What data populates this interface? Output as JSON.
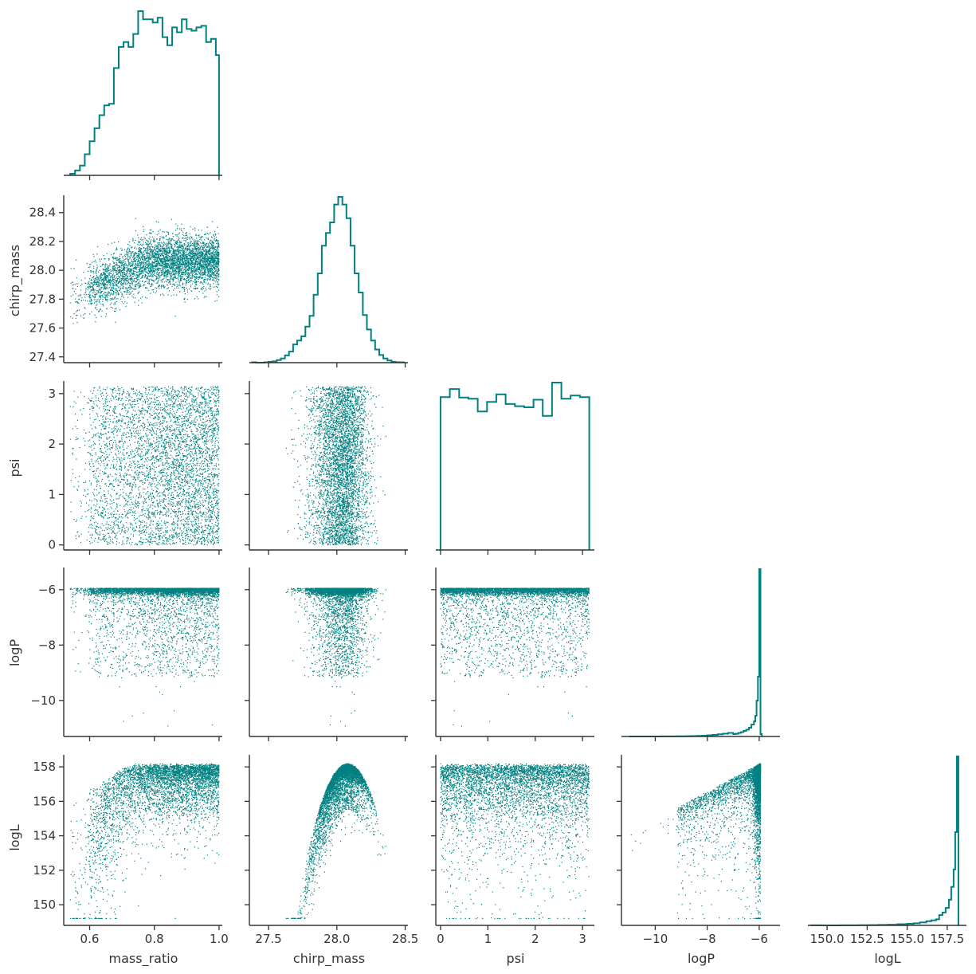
{
  "chart_data": {
    "type": "scatter",
    "kind": "corner-plot",
    "color": "#008080",
    "variables": [
      "mass_ratio",
      "chirp_mass",
      "psi",
      "logP",
      "logL"
    ],
    "variable_labels": {
      "mass_ratio": "mass_ratio",
      "chirp_mass": "chirp_mass",
      "psi": "psi",
      "logP": "logP",
      "logL": "logL"
    },
    "axis_ranges": {
      "mass_ratio": [
        0.52,
        1.01
      ],
      "chirp_mass": [
        27.36,
        28.52
      ],
      "psi": [
        -0.1,
        3.25
      ],
      "logP": [
        -11.3,
        -5.2
      ],
      "logL": [
        148.8,
        158.7
      ]
    },
    "ticks": {
      "mass_ratio": [
        0.6,
        0.8,
        1.0
      ],
      "chirp_mass": [
        27.5,
        28.0,
        28.5
      ],
      "psi": [
        0,
        1,
        2,
        3
      ],
      "logP": [
        -10,
        -8,
        -6
      ],
      "logL": [
        150,
        152,
        154,
        156,
        158
      ]
    },
    "tick_labels": {
      "mass_ratio": [
        "0.6",
        "0.8",
        "1.0"
      ],
      "chirp_mass": [
        "27.5",
        "28.0",
        "28.5"
      ],
      "psi": [
        "0",
        "1",
        "2",
        "3"
      ],
      "logP": [
        "−10",
        "−8",
        "−6"
      ],
      "logL_y": [
        "150",
        "152",
        "154",
        "156",
        "158"
      ],
      "chirp_mass_y": [
        "27.4",
        "27.6",
        "27.8",
        "28.0",
        "28.2",
        "28.4"
      ],
      "chirp_mass_y_values": [
        27.4,
        27.6,
        27.8,
        28.0,
        28.2,
        28.4
      ],
      "logL_x": [
        "150.0",
        "152.5",
        "155.0",
        "157.5"
      ],
      "logL_x_values": [
        150.0,
        152.5,
        155.0,
        157.5
      ]
    },
    "marginals": {
      "mass_ratio": {
        "bin_edges": [
          0.54,
          0.555,
          0.57,
          0.585,
          0.6,
          0.615,
          0.63,
          0.645,
          0.66,
          0.675,
          0.69,
          0.705,
          0.72,
          0.735,
          0.75,
          0.765,
          0.78,
          0.795,
          0.81,
          0.825,
          0.84,
          0.855,
          0.87,
          0.885,
          0.9,
          0.915,
          0.93,
          0.945,
          0.96,
          0.975,
          0.99,
          1.0
        ],
        "counts": [
          1,
          3,
          6,
          13,
          21,
          29,
          37,
          43,
          44,
          66,
          79,
          82,
          79,
          87,
          101,
          96,
          96,
          94,
          97,
          85,
          80,
          91,
          88,
          96,
          90,
          89,
          91,
          92,
          82,
          84,
          74
        ]
      },
      "chirp_mass": {
        "bin_edges": [
          27.38,
          27.41,
          27.44,
          27.47,
          27.5,
          27.53,
          27.56,
          27.59,
          27.62,
          27.65,
          27.68,
          27.71,
          27.74,
          27.77,
          27.8,
          27.83,
          27.86,
          27.89,
          27.92,
          27.95,
          27.98,
          28.01,
          28.04,
          28.07,
          28.1,
          28.13,
          28.16,
          28.19,
          28.22,
          28.25,
          28.28,
          28.31,
          28.34,
          28.37,
          28.4,
          28.43,
          28.46,
          28.49
        ],
        "counts": [
          1,
          0,
          0,
          1,
          2,
          3,
          6,
          10,
          17,
          26,
          43,
          52,
          62,
          85,
          110,
          160,
          210,
          275,
          305,
          330,
          372,
          390,
          372,
          340,
          275,
          210,
          165,
          112,
          78,
          52,
          31,
          18,
          10,
          5,
          2,
          1,
          1
        ]
      },
      "psi": {
        "bin_edges": [
          0.0,
          0.1963,
          0.3927,
          0.589,
          0.7854,
          0.9817,
          1.1781,
          1.3744,
          1.5708,
          1.7671,
          1.9635,
          2.1598,
          2.3562,
          2.5525,
          2.7489,
          2.9452,
          3.1416
        ],
        "counts": [
          285,
          300,
          284,
          282,
          258,
          276,
          290,
          272,
          268,
          266,
          280,
          250,
          312,
          282,
          288,
          285
        ]
      },
      "logP": {
        "bin_edges": [
          -11.0,
          -10.8,
          -10.6,
          -10.4,
          -10.2,
          -10.0,
          -9.8,
          -9.6,
          -9.4,
          -9.2,
          -9.0,
          -8.8,
          -8.6,
          -8.4,
          -8.2,
          -8.0,
          -7.8,
          -7.6,
          -7.4,
          -7.2,
          -7.0,
          -6.9,
          -6.8,
          -6.7,
          -6.6,
          -6.5,
          -6.4,
          -6.3,
          -6.2,
          -6.15,
          -6.1,
          -6.05,
          -6.0,
          -5.95,
          -5.9
        ],
        "counts": [
          1,
          0,
          1,
          0,
          1,
          1,
          2,
          2,
          3,
          4,
          6,
          8,
          10,
          15,
          20,
          30,
          40,
          55,
          70,
          90,
          60,
          70,
          90,
          110,
          140,
          170,
          220,
          300,
          380,
          520,
          900,
          1500,
          4200,
          60
        ]
      },
      "logL": {
        "bin_edges": [
          149.0,
          149.6,
          150.2,
          150.8,
          151.4,
          152.0,
          152.6,
          153.2,
          153.8,
          154.4,
          155.0,
          155.4,
          155.8,
          156.2,
          156.5,
          156.8,
          157.0,
          157.2,
          157.4,
          157.6,
          157.75,
          157.9,
          158.0,
          158.1,
          158.2
        ],
        "counts": [
          1,
          0,
          0,
          1,
          1,
          2,
          3,
          4,
          6,
          10,
          14,
          18,
          25,
          36,
          44,
          52,
          88,
          110,
          150,
          220,
          330,
          480,
          800,
          1450
        ]
      }
    },
    "scatter": {
      "n_points": 4500,
      "description_of_shape": {
        "chirp_mass_vs_mass_ratio": "positive correlation at low mass_ratio, plateau near 28.05",
        "logL_vs_chirp_mass": "inverted parabola peaked near 28.08, max 158.2",
        "logL_vs_mass_ratio": "rising to ~158.1 by mass_ratio 0.7",
        "logP_vs_all": "dense band near -6 with sparse tail toward -11",
        "logL_vs_logP": "logL rises with logP, maximum near logP -6"
      }
    }
  }
}
